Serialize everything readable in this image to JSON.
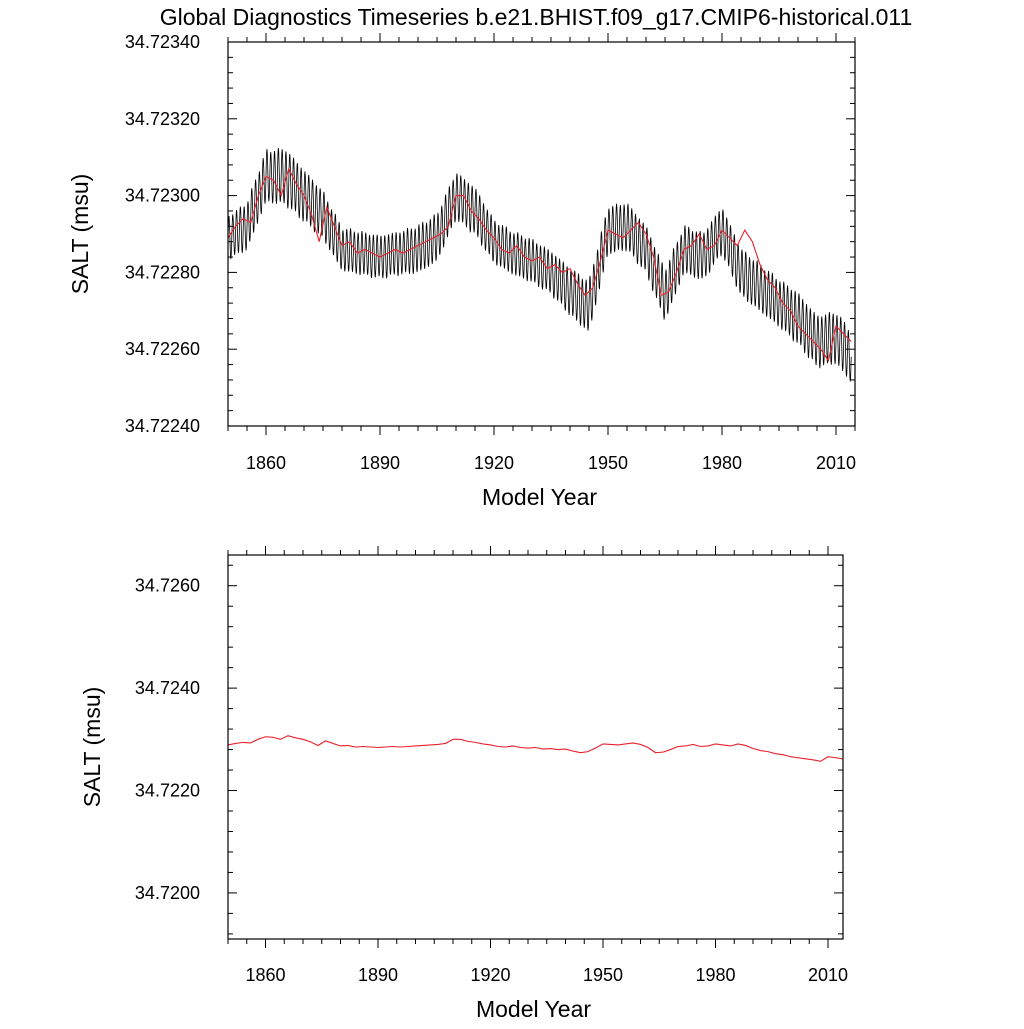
{
  "title": "Global Diagnostics Timeseries b.e21.BHIST.f09_g17.CMIP6-historical.011",
  "colors": {
    "monthly": "#000000",
    "annual": "#e8212b",
    "axes": "#000000"
  },
  "chart_data": [
    {
      "type": "line",
      "xlabel": "Model Year",
      "ylabel": "SALT (msu)",
      "xlim": [
        1850,
        2015
      ],
      "ylim": [
        34.7224,
        34.7234
      ],
      "xticks": [
        1860,
        1890,
        1920,
        1950,
        1980,
        2010
      ],
      "xtick_labels": [
        "1860",
        "1890",
        "1920",
        "1950",
        "1980",
        "2010"
      ],
      "yticks": [
        34.7224,
        34.7226,
        34.7228,
        34.723,
        34.7232,
        34.7234
      ],
      "ytick_labels": [
        "34.72240",
        "34.72260",
        "34.72280",
        "34.72300",
        "34.72320",
        "34.72340"
      ],
      "grid": false,
      "series": [
        {
          "role": "monthly",
          "color": "#000000",
          "x": [
            1850,
            1855,
            1860,
            1865,
            1870,
            1875,
            1880,
            1885,
            1890,
            1895,
            1900,
            1905,
            1910,
            1915,
            1920,
            1925,
            1930,
            1935,
            1940,
            1945,
            1950,
            1955,
            1960,
            1965,
            1970,
            1975,
            1980,
            1985,
            1990,
            1995,
            2000,
            2005,
            2010,
            2014
          ],
          "values": [
            34.72289,
            34.72292,
            34.72305,
            34.72305,
            34.723,
            34.72295,
            34.72286,
            34.72285,
            34.72284,
            34.72285,
            34.72286,
            34.72289,
            34.723,
            34.72296,
            34.72288,
            34.72285,
            34.72283,
            34.7228,
            34.72275,
            34.72271,
            34.72291,
            34.72292,
            34.72286,
            34.72274,
            34.72286,
            34.72284,
            34.72291,
            34.7228,
            34.72276,
            34.72272,
            34.72268,
            34.72262,
            34.72263,
            34.72258
          ],
          "amplitude": [
            0.0001,
            0.00011,
            0.00012,
            0.00013,
            0.00012,
            0.00011,
            0.0001,
            0.0001,
            0.0001,
            0.0001,
            0.00011,
            0.00011,
            0.00011,
            0.00011,
            0.0001,
            0.0001,
            0.0001,
            0.0001,
            0.00011,
            0.00012,
            0.00011,
            0.00011,
            0.00011,
            0.00012,
            0.00011,
            0.00011,
            0.00011,
            0.00011,
            0.00011,
            0.00011,
            0.00012,
            0.00012,
            0.00012,
            0.00012
          ]
        },
        {
          "role": "annual",
          "color": "#e8212b",
          "x": [
            1850,
            1852,
            1854,
            1856,
            1858,
            1860,
            1862,
            1864,
            1866,
            1868,
            1870,
            1872,
            1874,
            1876,
            1878,
            1880,
            1882,
            1884,
            1886,
            1888,
            1890,
            1892,
            1894,
            1896,
            1898,
            1900,
            1902,
            1904,
            1906,
            1908,
            1910,
            1912,
            1914,
            1916,
            1918,
            1920,
            1922,
            1924,
            1926,
            1928,
            1930,
            1932,
            1934,
            1936,
            1938,
            1940,
            1942,
            1944,
            1946,
            1948,
            1950,
            1952,
            1954,
            1956,
            1958,
            1960,
            1962,
            1964,
            1966,
            1968,
            1970,
            1972,
            1974,
            1976,
            1978,
            1980,
            1982,
            1984,
            1986,
            1988,
            1990,
            1992,
            1994,
            1996,
            1998,
            2000,
            2002,
            2004,
            2006,
            2008,
            2010,
            2012,
            2014
          ],
          "values": [
            34.72289,
            34.72292,
            34.72294,
            34.72293,
            34.723,
            34.72305,
            34.72304,
            34.723,
            34.72307,
            34.72303,
            34.723,
            34.72295,
            34.72288,
            34.72297,
            34.72292,
            34.72287,
            34.72288,
            34.72285,
            34.72286,
            34.72285,
            34.72284,
            34.72285,
            34.72286,
            34.72285,
            34.72286,
            34.72287,
            34.72288,
            34.72289,
            34.7229,
            34.72292,
            34.723,
            34.723,
            34.72296,
            34.72294,
            34.72291,
            34.72289,
            34.72286,
            34.72285,
            34.72287,
            34.72284,
            34.72283,
            34.72284,
            34.72281,
            34.72282,
            34.7228,
            34.72281,
            34.72277,
            34.72274,
            34.72276,
            34.72283,
            34.72291,
            34.7229,
            34.72289,
            34.72291,
            34.72293,
            34.7229,
            34.72284,
            34.72274,
            34.72275,
            34.7228,
            34.72286,
            34.72287,
            34.7229,
            34.72286,
            34.72287,
            34.72291,
            34.72289,
            34.72287,
            34.72291,
            34.72288,
            34.72282,
            34.72278,
            34.72276,
            34.72272,
            34.7227,
            34.72266,
            34.72264,
            34.72262,
            34.7226,
            34.72257,
            34.72266,
            34.72264,
            34.72262
          ]
        }
      ]
    },
    {
      "type": "line",
      "xlabel": "Model Year",
      "ylabel": "SALT (msu)",
      "xlim": [
        1850,
        2014
      ],
      "ylim": [
        34.7191,
        34.7266
      ],
      "xticks": [
        1860,
        1890,
        1920,
        1950,
        1980,
        2010
      ],
      "xtick_labels": [
        "1860",
        "1890",
        "1920",
        "1950",
        "1980",
        "2010"
      ],
      "yticks": [
        34.72,
        34.722,
        34.724,
        34.726
      ],
      "ytick_labels": [
        "34.7200",
        "34.7220",
        "34.7240",
        "34.7260"
      ],
      "grid": false,
      "series": [
        {
          "role": "annual",
          "color": "#e8212b",
          "x": [
            1850,
            1852,
            1854,
            1856,
            1858,
            1860,
            1862,
            1864,
            1866,
            1868,
            1870,
            1872,
            1874,
            1876,
            1878,
            1880,
            1882,
            1884,
            1886,
            1888,
            1890,
            1892,
            1894,
            1896,
            1898,
            1900,
            1902,
            1904,
            1906,
            1908,
            1910,
            1912,
            1914,
            1916,
            1918,
            1920,
            1922,
            1924,
            1926,
            1928,
            1930,
            1932,
            1934,
            1936,
            1938,
            1940,
            1942,
            1944,
            1946,
            1948,
            1950,
            1952,
            1954,
            1956,
            1958,
            1960,
            1962,
            1964,
            1966,
            1968,
            1970,
            1972,
            1974,
            1976,
            1978,
            1980,
            1982,
            1984,
            1986,
            1988,
            1990,
            1992,
            1994,
            1996,
            1998,
            2000,
            2002,
            2004,
            2006,
            2008,
            2010,
            2012,
            2014
          ],
          "values": [
            34.72289,
            34.72292,
            34.72294,
            34.72293,
            34.723,
            34.72305,
            34.72304,
            34.723,
            34.72307,
            34.72303,
            34.723,
            34.72295,
            34.72288,
            34.72297,
            34.72292,
            34.72287,
            34.72288,
            34.72285,
            34.72286,
            34.72285,
            34.72284,
            34.72285,
            34.72286,
            34.72285,
            34.72286,
            34.72287,
            34.72288,
            34.72289,
            34.7229,
            34.72292,
            34.723,
            34.723,
            34.72296,
            34.72294,
            34.72291,
            34.72289,
            34.72286,
            34.72285,
            34.72287,
            34.72284,
            34.72283,
            34.72284,
            34.72281,
            34.72282,
            34.7228,
            34.72281,
            34.72277,
            34.72274,
            34.72276,
            34.72283,
            34.72291,
            34.7229,
            34.72289,
            34.72291,
            34.72293,
            34.7229,
            34.72284,
            34.72274,
            34.72275,
            34.7228,
            34.72286,
            34.72287,
            34.7229,
            34.72286,
            34.72287,
            34.72291,
            34.72289,
            34.72287,
            34.72291,
            34.72288,
            34.72282,
            34.72278,
            34.72276,
            34.72272,
            34.7227,
            34.72266,
            34.72264,
            34.72262,
            34.7226,
            34.72257,
            34.72266,
            34.72264,
            34.72262
          ]
        }
      ]
    }
  ]
}
